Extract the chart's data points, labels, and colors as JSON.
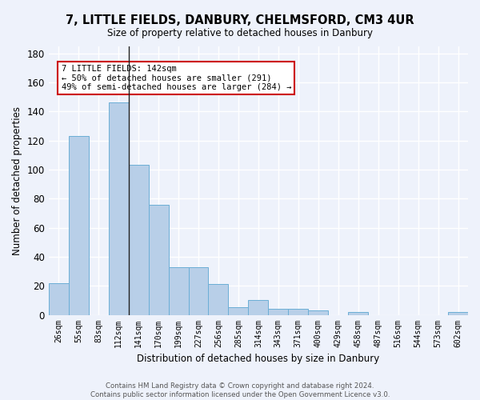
{
  "title": "7, LITTLE FIELDS, DANBURY, CHELMSFORD, CM3 4UR",
  "subtitle": "Size of property relative to detached houses in Danbury",
  "xlabel": "Distribution of detached houses by size in Danbury",
  "ylabel": "Number of detached properties",
  "bar_labels": [
    "26sqm",
    "55sqm",
    "83sqm",
    "112sqm",
    "141sqm",
    "170sqm",
    "199sqm",
    "227sqm",
    "256sqm",
    "285sqm",
    "314sqm",
    "343sqm",
    "371sqm",
    "400sqm",
    "429sqm",
    "458sqm",
    "487sqm",
    "516sqm",
    "544sqm",
    "573sqm",
    "602sqm"
  ],
  "bar_values": [
    22,
    123,
    0,
    146,
    103,
    76,
    33,
    33,
    21,
    5,
    10,
    4,
    4,
    3,
    0,
    2,
    0,
    0,
    0,
    0,
    2
  ],
  "bar_color": "#b8cfe8",
  "bar_edge_color": "#6baed6",
  "background_color": "#eef2fb",
  "grid_color": "#ffffff",
  "ylim": [
    0,
    185
  ],
  "yticks": [
    0,
    20,
    40,
    60,
    80,
    100,
    120,
    140,
    160,
    180
  ],
  "vline_x_index": 4,
  "annotation_text": "7 LITTLE FIELDS: 142sqm\n← 50% of detached houses are smaller (291)\n49% of semi-detached houses are larger (284) →",
  "annotation_box_color": "#ffffff",
  "annotation_border_color": "#cc0000",
  "footer_line1": "Contains HM Land Registry data © Crown copyright and database right 2024.",
  "footer_line2": "Contains public sector information licensed under the Open Government Licence v3.0."
}
